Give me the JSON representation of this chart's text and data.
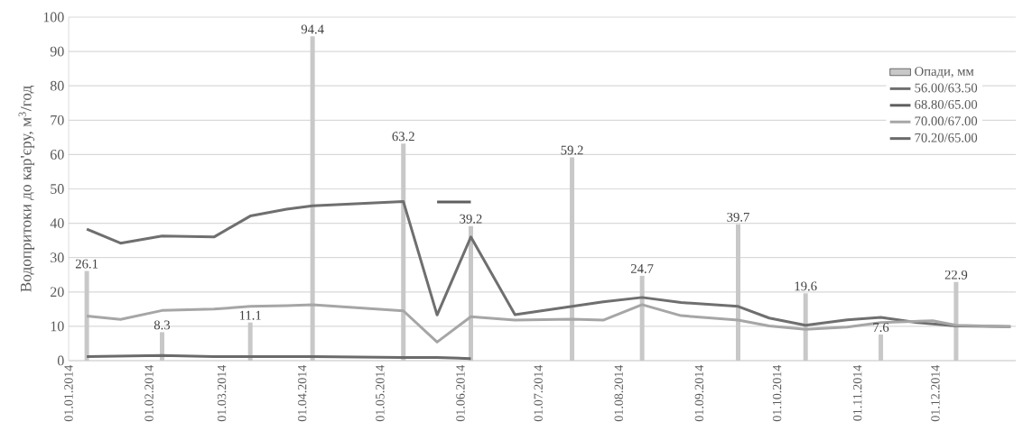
{
  "chart_data": {
    "type": "line",
    "ylabel": "Водопритоки до кар'єру, м$^{3}$/год",
    "xlim": [
      "2014-01-01",
      "2015-01-01"
    ],
    "xticks": [
      {
        "value": "2014-01-01",
        "label": "01.01.2014"
      },
      {
        "value": "2014-02-01",
        "label": "01.02.2014"
      },
      {
        "value": "2014-03-01",
        "label": "01.03.2014"
      },
      {
        "value": "2014-04-01",
        "label": "01.04.2014"
      },
      {
        "value": "2014-05-01",
        "label": "01.05.2014"
      },
      {
        "value": "2014-06-01",
        "label": "01.06.2014"
      },
      {
        "value": "2014-07-01",
        "label": "01.07.2014"
      },
      {
        "value": "2014-08-01",
        "label": "01.08.2014"
      },
      {
        "value": "2014-09-01",
        "label": "01.09.2014"
      },
      {
        "value": "2014-10-01",
        "label": "01.10.2014"
      },
      {
        "value": "2014-11-01",
        "label": "01.11.2014"
      },
      {
        "value": "2014-12-01",
        "label": "01.12.2014"
      }
    ],
    "ylim": [
      0,
      100
    ],
    "yticks": [
      0,
      10,
      20,
      30,
      40,
      50,
      60,
      70,
      80,
      90,
      100
    ],
    "grid": "y",
    "legend": "top right",
    "series": [
      {
        "name": "Опади, мм",
        "type": "bar",
        "color": "#c8c8c8",
        "data_labels": true,
        "x": [
          "2014-01-08",
          "2014-02-06",
          "2014-03-12",
          "2014-04-05",
          "2014-05-10",
          "2014-06-05",
          "2014-07-14",
          "2014-08-10",
          "2014-09-16",
          "2014-10-12",
          "2014-11-10",
          "2014-12-09"
        ],
        "values": [
          26.1,
          8.3,
          11.1,
          94.4,
          63.2,
          39.2,
          59.2,
          24.7,
          39.7,
          19.6,
          7.6,
          22.9
        ]
      },
      {
        "name": "56.00/63.50",
        "color": "#6f6f6f",
        "x": [
          "2014-01-08",
          "2014-01-21",
          "2014-02-06",
          "2014-02-26",
          "2014-03-12",
          "2014-03-26",
          "2014-04-05",
          "2014-05-10",
          "2014-05-23",
          "2014-06-05",
          "2014-06-22",
          "2014-07-26",
          "2014-08-10",
          "2014-08-25",
          "2014-09-16",
          "2014-09-28",
          "2014-10-12",
          "2014-10-28",
          "2014-11-10",
          "2014-11-24",
          "2014-12-09",
          "2014-12-30"
        ],
        "values": [
          38.3,
          34.2,
          36.3,
          36.0,
          42.1,
          44.1,
          45.1,
          46.3,
          13.3,
          36.0,
          13.4,
          17.1,
          18.4,
          16.9,
          15.8,
          12.4,
          10.3,
          11.9,
          12.6,
          11.1,
          10.1,
          9.9
        ]
      },
      {
        "name": "68.80/65.00",
        "color": "#5f5f5f",
        "x": [
          "2014-05-23",
          "2014-06-05"
        ],
        "values": [
          46.2,
          46.2
        ]
      },
      {
        "name": "70.00/67.00",
        "color": "#a6a6a6",
        "x": [
          "2014-01-08",
          "2014-01-21",
          "2014-02-06",
          "2014-02-26",
          "2014-03-12",
          "2014-03-26",
          "2014-04-05",
          "2014-05-10",
          "2014-05-23",
          "2014-06-05",
          "2014-06-22",
          "2014-07-14",
          "2014-07-26",
          "2014-08-10",
          "2014-08-25",
          "2014-09-16",
          "2014-09-28",
          "2014-10-12",
          "2014-10-28",
          "2014-11-10",
          "2014-11-30",
          "2014-12-09",
          "2014-12-30"
        ],
        "values": [
          13.0,
          12.0,
          14.6,
          15.0,
          15.8,
          16.0,
          16.3,
          14.5,
          5.4,
          12.8,
          11.8,
          12.1,
          11.8,
          16.3,
          13.1,
          11.8,
          10.1,
          9.1,
          9.8,
          11.1,
          11.6,
          10.3,
          9.9
        ]
      },
      {
        "name": "70.20/65.00",
        "color": "#6a6a6a",
        "x": [
          "2014-01-08",
          "2014-02-06",
          "2014-02-26",
          "2014-04-05",
          "2014-05-10",
          "2014-05-23",
          "2014-06-05"
        ],
        "values": [
          1.2,
          1.5,
          1.2,
          1.2,
          0.9,
          0.9,
          0.6
        ]
      }
    ]
  }
}
